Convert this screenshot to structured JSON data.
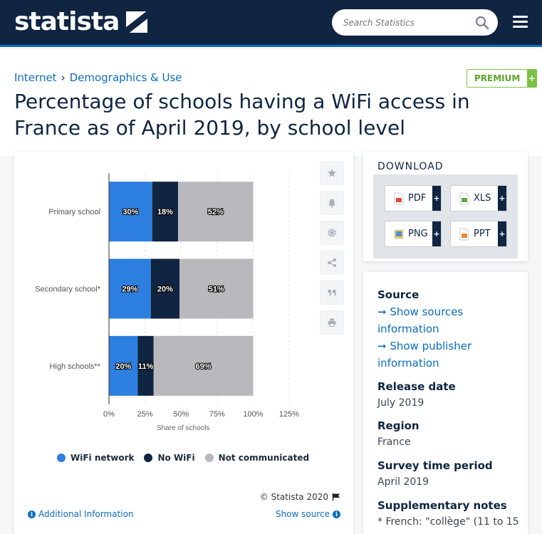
{
  "header": {
    "logo_text": "statista",
    "search_placeholder": "Search Statistics"
  },
  "breadcrumb": {
    "items": [
      "Internet",
      "Demographics & Use"
    ],
    "separator": "›"
  },
  "premium": {
    "label": "PREMIUM",
    "plus": "+"
  },
  "page_title": "Percentage of schools having a WiFi access in France as of April 2019, by school level",
  "chart_data": {
    "type": "bar",
    "orientation": "horizontal",
    "stacked": true,
    "categories": [
      "Primary school",
      "Secondary school*",
      "High schools**"
    ],
    "series": [
      {
        "name": "WiFi network",
        "color": "#2d7fe0",
        "values": [
          30,
          29,
          20
        ]
      },
      {
        "name": "No WiFi",
        "color": "#0f2541",
        "values": [
          18,
          20,
          11
        ]
      },
      {
        "name": "Not communicated",
        "color": "#b9b9bd",
        "values": [
          52,
          51,
          69
        ]
      }
    ],
    "data_labels": [
      [
        "30%",
        "18%",
        "52%"
      ],
      [
        "29%",
        "20%",
        "51%"
      ],
      [
        "20%",
        "11%",
        "69%"
      ]
    ],
    "xlim": [
      0,
      125
    ],
    "ticks": [
      "0%",
      "25%",
      "50%",
      "75%",
      "100%",
      "125%"
    ],
    "tick_values": [
      0,
      25,
      50,
      75,
      100,
      125
    ],
    "xlabel": "Share of schools",
    "ylabel": "",
    "title": "",
    "grid": true,
    "legend_position": "bottom"
  },
  "legend": {
    "wifi": "WiFi network",
    "no_wifi": "No WiFi",
    "not_communicated": "Not communicated"
  },
  "chart_footer": {
    "copyright": "© Statista 2020",
    "additional_info": "Additional Information",
    "show_source": "Show source"
  },
  "download": {
    "title": "DOWNLOAD",
    "buttons": [
      {
        "label": "PDF",
        "plus": "+"
      },
      {
        "label": "XLS",
        "plus": "+"
      },
      {
        "label": "PNG",
        "plus": "+"
      },
      {
        "label": "PPT",
        "plus": "+"
      }
    ]
  },
  "info": {
    "source_heading": "Source",
    "show_sources_line1": "➞ Show sources",
    "show_sources_line2": "information",
    "show_publisher_line1": "➞ Show publisher",
    "show_publisher_line2": "information",
    "release_heading": "Release date",
    "release_value": "July 2019",
    "region_heading": "Region",
    "region_value": "France",
    "survey_heading": "Survey time period",
    "survey_value": "April 2019",
    "notes_heading": "Supplementary notes",
    "notes_value": "* French: \"collège\" (11 to 15"
  }
}
